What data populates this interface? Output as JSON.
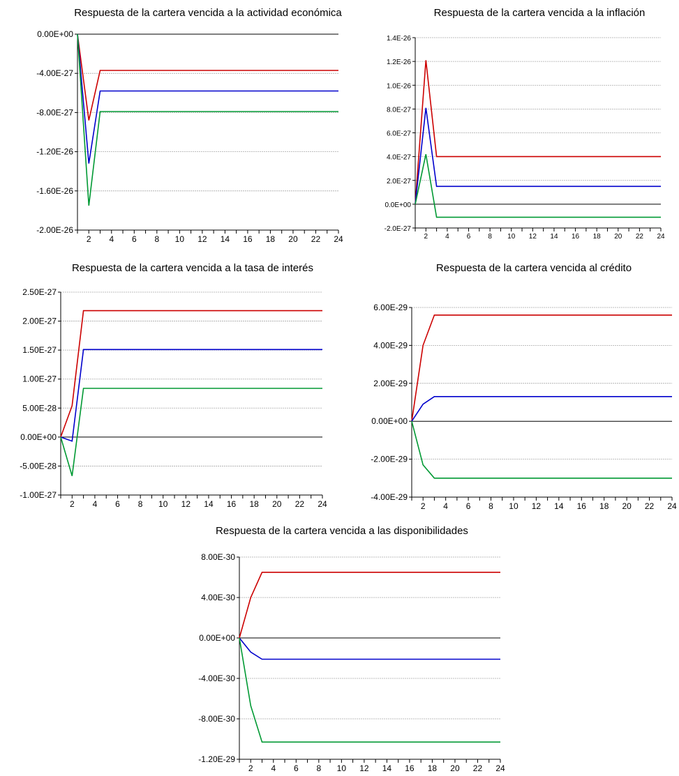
{
  "chart_data": [
    {
      "type": "line",
      "title": "Respuesta de la cartera vencida a la actividad económica",
      "x": [
        1,
        2,
        3,
        4,
        5,
        6,
        7,
        8,
        9,
        10,
        11,
        12,
        13,
        14,
        15,
        16,
        17,
        18,
        19,
        20,
        21,
        22,
        23,
        24
      ],
      "xticks": [
        2,
        4,
        6,
        8,
        10,
        12,
        14,
        16,
        18,
        20,
        22,
        24
      ],
      "xlim": [
        1,
        24
      ],
      "ylim": [
        -2e-26,
        0.0
      ],
      "yticks": [
        0.0,
        -4e-27,
        -8e-27,
        -1.2e-26,
        -1.6e-26,
        -2e-26
      ],
      "ytick_labels": [
        "0.00E+00",
        "-4.00E-27",
        "-8.00E-27",
        "-1.20E-26",
        "-1.60E-26",
        "-2.00E-26"
      ],
      "grid": true,
      "series": [
        {
          "color": "#cc0000",
          "values": [
            0,
            -8.8e-27,
            -3.7e-27,
            -3.7e-27,
            -3.7e-27,
            -3.7e-27,
            -3.7e-27,
            -3.7e-27,
            -3.7e-27,
            -3.7e-27,
            -3.7e-27,
            -3.7e-27,
            -3.7e-27,
            -3.7e-27,
            -3.7e-27,
            -3.7e-27,
            -3.7e-27,
            -3.7e-27,
            -3.7e-27,
            -3.7e-27,
            -3.7e-27,
            -3.7e-27,
            -3.7e-27,
            -3.7e-27
          ]
        },
        {
          "color": "#0000cc",
          "values": [
            0,
            -1.32e-26,
            -5.8e-27,
            -5.8e-27,
            -5.8e-27,
            -5.8e-27,
            -5.8e-27,
            -5.8e-27,
            -5.8e-27,
            -5.8e-27,
            -5.8e-27,
            -5.8e-27,
            -5.8e-27,
            -5.8e-27,
            -5.8e-27,
            -5.8e-27,
            -5.8e-27,
            -5.8e-27,
            -5.8e-27,
            -5.8e-27,
            -5.8e-27,
            -5.8e-27,
            -5.8e-27,
            -5.8e-27
          ]
        },
        {
          "color": "#009933",
          "values": [
            0,
            -1.75e-26,
            -7.9e-27,
            -7.9e-27,
            -7.9e-27,
            -7.9e-27,
            -7.9e-27,
            -7.9e-27,
            -7.9e-27,
            -7.9e-27,
            -7.9e-27,
            -7.9e-27,
            -7.9e-27,
            -7.9e-27,
            -7.9e-27,
            -7.9e-27,
            -7.9e-27,
            -7.9e-27,
            -7.9e-27,
            -7.9e-27,
            -7.9e-27,
            -7.9e-27,
            -7.9e-27,
            -7.9e-27
          ]
        }
      ]
    },
    {
      "type": "line",
      "title": "Respuesta de la cartera vencida a la inflación",
      "x": [
        1,
        2,
        3,
        4,
        5,
        6,
        7,
        8,
        9,
        10,
        11,
        12,
        13,
        14,
        15,
        16,
        17,
        18,
        19,
        20,
        21,
        22,
        23,
        24
      ],
      "xticks": [
        2,
        4,
        6,
        8,
        10,
        12,
        14,
        16,
        18,
        20,
        22,
        24
      ],
      "xlim": [
        1,
        24
      ],
      "ylim": [
        -2e-27,
        1.4e-26
      ],
      "yticks": [
        1.4e-26,
        1.2e-26,
        1e-26,
        8e-27,
        6e-27,
        4e-27,
        2e-27,
        0.0,
        -2e-27
      ],
      "ytick_labels": [
        "1.4E-26",
        "1.2E-26",
        "1.0E-26",
        "8.0E-27",
        "6.0E-27",
        "4.0E-27",
        "2.0E-27",
        "0.0E+00",
        "-2.0E-27"
      ],
      "grid": true,
      "series": [
        {
          "color": "#cc0000",
          "values": [
            0,
            1.21e-26,
            4e-27,
            4e-27,
            4e-27,
            4e-27,
            4e-27,
            4e-27,
            4e-27,
            4e-27,
            4e-27,
            4e-27,
            4e-27,
            4e-27,
            4e-27,
            4e-27,
            4e-27,
            4e-27,
            4e-27,
            4e-27,
            4e-27,
            4e-27,
            4e-27,
            4e-27
          ]
        },
        {
          "color": "#0000cc",
          "values": [
            0,
            8.1e-27,
            1.5e-27,
            1.5e-27,
            1.5e-27,
            1.5e-27,
            1.5e-27,
            1.5e-27,
            1.5e-27,
            1.5e-27,
            1.5e-27,
            1.5e-27,
            1.5e-27,
            1.5e-27,
            1.5e-27,
            1.5e-27,
            1.5e-27,
            1.5e-27,
            1.5e-27,
            1.5e-27,
            1.5e-27,
            1.5e-27,
            1.5e-27,
            1.5e-27
          ]
        },
        {
          "color": "#009933",
          "values": [
            0,
            4.2e-27,
            -1.1e-27,
            -1.1e-27,
            -1.1e-27,
            -1.1e-27,
            -1.1e-27,
            -1.1e-27,
            -1.1e-27,
            -1.1e-27,
            -1.1e-27,
            -1.1e-27,
            -1.1e-27,
            -1.1e-27,
            -1.1e-27,
            -1.1e-27,
            -1.1e-27,
            -1.1e-27,
            -1.1e-27,
            -1.1e-27,
            -1.1e-27,
            -1.1e-27,
            -1.1e-27,
            -1.1e-27
          ]
        }
      ]
    },
    {
      "type": "line",
      "title": "Respuesta de la cartera vencida a la tasa de interés",
      "x": [
        1,
        2,
        3,
        4,
        5,
        6,
        7,
        8,
        9,
        10,
        11,
        12,
        13,
        14,
        15,
        16,
        17,
        18,
        19,
        20,
        21,
        22,
        23,
        24
      ],
      "xticks": [
        2,
        4,
        6,
        8,
        10,
        12,
        14,
        16,
        18,
        20,
        22,
        24
      ],
      "xlim": [
        1,
        24
      ],
      "ylim": [
        -1e-27,
        2.5e-27
      ],
      "yticks": [
        2.5e-27,
        2e-27,
        1.5e-27,
        1e-27,
        5e-28,
        0.0,
        -5e-28,
        -1e-27
      ],
      "ytick_labels": [
        "2.50E-27",
        "2.00E-27",
        "1.50E-27",
        "1.00E-27",
        "5.00E-28",
        "0.00E+00",
        "-5.00E-28",
        "-1.00E-27"
      ],
      "grid": true,
      "series": [
        {
          "color": "#cc0000",
          "values": [
            0,
            5.4e-28,
            2.18e-27,
            2.18e-27,
            2.18e-27,
            2.18e-27,
            2.18e-27,
            2.18e-27,
            2.18e-27,
            2.18e-27,
            2.18e-27,
            2.18e-27,
            2.18e-27,
            2.18e-27,
            2.18e-27,
            2.18e-27,
            2.18e-27,
            2.18e-27,
            2.18e-27,
            2.18e-27,
            2.18e-27,
            2.18e-27,
            2.18e-27,
            2.18e-27
          ]
        },
        {
          "color": "#0000cc",
          "values": [
            0,
            -7e-29,
            1.51e-27,
            1.51e-27,
            1.51e-27,
            1.51e-27,
            1.51e-27,
            1.51e-27,
            1.51e-27,
            1.51e-27,
            1.51e-27,
            1.51e-27,
            1.51e-27,
            1.51e-27,
            1.51e-27,
            1.51e-27,
            1.51e-27,
            1.51e-27,
            1.51e-27,
            1.51e-27,
            1.51e-27,
            1.51e-27,
            1.51e-27,
            1.51e-27
          ]
        },
        {
          "color": "#009933",
          "values": [
            0,
            -6.7e-28,
            8.4e-28,
            8.4e-28,
            8.4e-28,
            8.4e-28,
            8.4e-28,
            8.4e-28,
            8.4e-28,
            8.4e-28,
            8.4e-28,
            8.4e-28,
            8.4e-28,
            8.4e-28,
            8.4e-28,
            8.4e-28,
            8.4e-28,
            8.4e-28,
            8.4e-28,
            8.4e-28,
            8.4e-28,
            8.4e-28,
            8.4e-28,
            8.4e-28
          ]
        }
      ]
    },
    {
      "type": "line",
      "title": "Respuesta de la cartera vencida al crédito",
      "x": [
        1,
        2,
        3,
        4,
        5,
        6,
        7,
        8,
        9,
        10,
        11,
        12,
        13,
        14,
        15,
        16,
        17,
        18,
        19,
        20,
        21,
        22,
        23,
        24
      ],
      "xticks": [
        2,
        4,
        6,
        8,
        10,
        12,
        14,
        16,
        18,
        20,
        22,
        24
      ],
      "xlim": [
        1,
        24
      ],
      "ylim": [
        -4e-29,
        6e-29
      ],
      "yticks": [
        6e-29,
        4e-29,
        2e-29,
        0.0,
        -2e-29,
        -4e-29
      ],
      "ytick_labels": [
        "6.00E-29",
        "4.00E-29",
        "2.00E-29",
        "0.00E+00",
        "-2.00E-29",
        "-4.00E-29"
      ],
      "grid": true,
      "series": [
        {
          "color": "#cc0000",
          "values": [
            0,
            4e-29,
            5.6e-29,
            5.6e-29,
            5.6e-29,
            5.6e-29,
            5.6e-29,
            5.6e-29,
            5.6e-29,
            5.6e-29,
            5.6e-29,
            5.6e-29,
            5.6e-29,
            5.6e-29,
            5.6e-29,
            5.6e-29,
            5.6e-29,
            5.6e-29,
            5.6e-29,
            5.6e-29,
            5.6e-29,
            5.6e-29,
            5.6e-29,
            5.6e-29
          ]
        },
        {
          "color": "#0000cc",
          "values": [
            0,
            9e-30,
            1.3e-29,
            1.3e-29,
            1.3e-29,
            1.3e-29,
            1.3e-29,
            1.3e-29,
            1.3e-29,
            1.3e-29,
            1.3e-29,
            1.3e-29,
            1.3e-29,
            1.3e-29,
            1.3e-29,
            1.3e-29,
            1.3e-29,
            1.3e-29,
            1.3e-29,
            1.3e-29,
            1.3e-29,
            1.3e-29,
            1.3e-29,
            1.3e-29
          ]
        },
        {
          "color": "#009933",
          "values": [
            0,
            -2.3e-29,
            -3e-29,
            -3e-29,
            -3e-29,
            -3e-29,
            -3e-29,
            -3e-29,
            -3e-29,
            -3e-29,
            -3e-29,
            -3e-29,
            -3e-29,
            -3e-29,
            -3e-29,
            -3e-29,
            -3e-29,
            -3e-29,
            -3e-29,
            -3e-29,
            -3e-29,
            -3e-29,
            -3e-29,
            -3e-29
          ]
        }
      ]
    },
    {
      "type": "line",
      "title": "Respuesta de la cartera vencida a las disponibilidades",
      "x": [
        1,
        2,
        3,
        4,
        5,
        6,
        7,
        8,
        9,
        10,
        11,
        12,
        13,
        14,
        15,
        16,
        17,
        18,
        19,
        20,
        21,
        22,
        23,
        24
      ],
      "xticks": [
        2,
        4,
        6,
        8,
        10,
        12,
        14,
        16,
        18,
        20,
        22,
        24
      ],
      "xlim": [
        1,
        24
      ],
      "ylim": [
        -1.2e-29,
        8e-30
      ],
      "yticks": [
        8e-30,
        4e-30,
        0.0,
        -4e-30,
        -8e-30,
        -1.2e-29
      ],
      "ytick_labels": [
        "8.00E-30",
        "4.00E-30",
        "0.00E+00",
        "-4.00E-30",
        "-8.00E-30",
        "-1.20E-29"
      ],
      "grid": true,
      "series": [
        {
          "color": "#cc0000",
          "values": [
            0,
            4e-30,
            6.5e-30,
            6.5e-30,
            6.5e-30,
            6.5e-30,
            6.5e-30,
            6.5e-30,
            6.5e-30,
            6.5e-30,
            6.5e-30,
            6.5e-30,
            6.5e-30,
            6.5e-30,
            6.5e-30,
            6.5e-30,
            6.5e-30,
            6.5e-30,
            6.5e-30,
            6.5e-30,
            6.5e-30,
            6.5e-30,
            6.5e-30,
            6.5e-30
          ]
        },
        {
          "color": "#0000cc",
          "values": [
            0,
            -1.4e-30,
            -2.1e-30,
            -2.1e-30,
            -2.1e-30,
            -2.1e-30,
            -2.1e-30,
            -2.1e-30,
            -2.1e-30,
            -2.1e-30,
            -2.1e-30,
            -2.1e-30,
            -2.1e-30,
            -2.1e-30,
            -2.1e-30,
            -2.1e-30,
            -2.1e-30,
            -2.1e-30,
            -2.1e-30,
            -2.1e-30,
            -2.1e-30,
            -2.1e-30,
            -2.1e-30,
            -2.1e-30
          ]
        },
        {
          "color": "#009933",
          "values": [
            0,
            -6.7e-30,
            -1.03e-29,
            -1.03e-29,
            -1.03e-29,
            -1.03e-29,
            -1.03e-29,
            -1.03e-29,
            -1.03e-29,
            -1.03e-29,
            -1.03e-29,
            -1.03e-29,
            -1.03e-29,
            -1.03e-29,
            -1.03e-29,
            -1.03e-29,
            -1.03e-29,
            -1.03e-29,
            -1.03e-29,
            -1.03e-29,
            -1.03e-29,
            -1.03e-29,
            -1.03e-29,
            -1.03e-29
          ]
        }
      ]
    }
  ]
}
